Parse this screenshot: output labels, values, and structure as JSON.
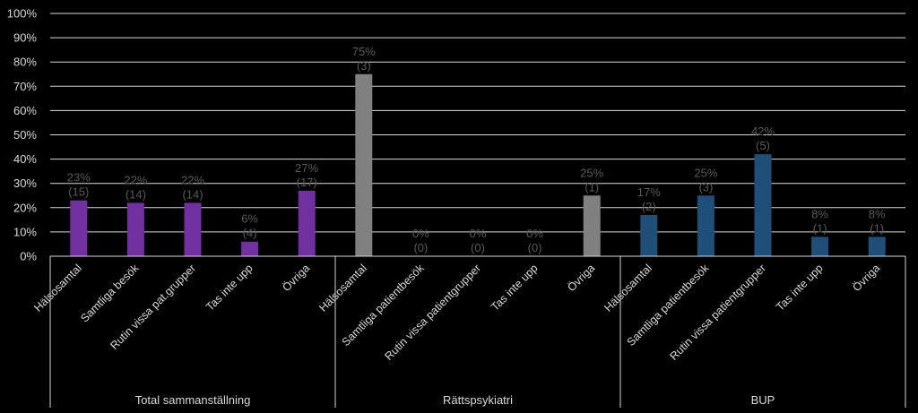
{
  "chart_data": {
    "type": "bar",
    "ylim": [
      0,
      100
    ],
    "yticks": [
      "0%",
      "10%",
      "20%",
      "30%",
      "40%",
      "50%",
      "60%",
      "70%",
      "80%",
      "90%",
      "100%"
    ],
    "grid": true,
    "groups": [
      {
        "name": "Total sammanställning",
        "color": "#7030a0",
        "categories": [
          "Hälsosamtal",
          "Samtliga besök",
          "Rutin vissa pat.grupper",
          "Tas inte upp",
          "Övriga"
        ],
        "values": [
          23,
          22,
          22,
          6,
          27
        ],
        "percent_labels": [
          "23%",
          "22%",
          "22%",
          "6%",
          "27%"
        ],
        "count_labels": [
          "(15)",
          "(14)",
          "(14)",
          "(4)",
          "(17)"
        ]
      },
      {
        "name": "Rättspsykiatri",
        "color": "#808080",
        "categories": [
          "Hälsosamtal",
          "Samtliga patientbesök",
          "Rutin vissa patientgrupper",
          "Tas inte upp",
          "Övriga"
        ],
        "values": [
          75,
          0,
          0,
          0,
          25
        ],
        "percent_labels": [
          "75%",
          "0%",
          "0%",
          "0%",
          "25%"
        ],
        "count_labels": [
          "(3)",
          "(0)",
          "(0)",
          "(0)",
          "(1)"
        ]
      },
      {
        "name": "BUP",
        "color": "#1f4e79",
        "categories": [
          "Hälsosamtal",
          "Samtliga patientbesök",
          "Rutin vissa patientgrupper",
          "Tas inte upp",
          "Övriga"
        ],
        "values": [
          17,
          25,
          42,
          8,
          8
        ],
        "percent_labels": [
          "17%",
          "25%",
          "42%",
          "8%",
          "8%"
        ],
        "count_labels": [
          "(2)",
          "(3)",
          "(5)",
          "(1)",
          "(1)"
        ]
      }
    ]
  }
}
